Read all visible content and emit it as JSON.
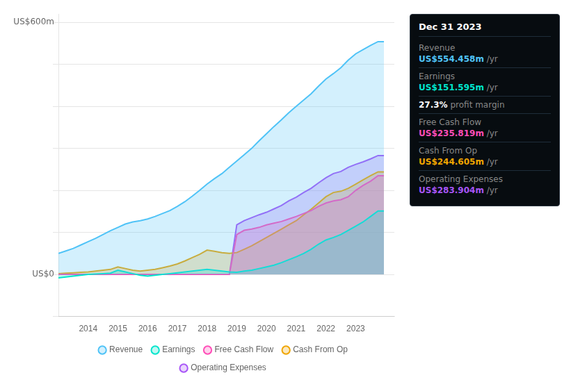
{
  "chart_data": {
    "type": "area",
    "x": [
      2013.0,
      2013.25,
      2013.5,
      2013.75,
      2014.0,
      2014.25,
      2014.5,
      2014.75,
      2015.0,
      2015.25,
      2015.5,
      2015.75,
      2016.0,
      2016.25,
      2016.5,
      2016.75,
      2017.0,
      2017.25,
      2017.5,
      2017.75,
      2018.0,
      2018.25,
      2018.5,
      2018.75,
      2019.0,
      2019.25,
      2019.5,
      2019.75,
      2020.0,
      2020.25,
      2020.5,
      2020.75,
      2021.0,
      2021.25,
      2021.5,
      2021.75,
      2022.0,
      2022.25,
      2022.5,
      2022.75,
      2023.0,
      2023.25,
      2023.5,
      2023.75,
      2023.95
    ],
    "series": [
      {
        "name": "Revenue",
        "color": "#4fc3f7",
        "values": [
          50,
          56,
          62,
          70,
          78,
          86,
          95,
          104,
          112,
          120,
          125,
          128,
          132,
          138,
          145,
          152,
          162,
          173,
          186,
          200,
          215,
          228,
          240,
          255,
          270,
          285,
          300,
          318,
          335,
          352,
          368,
          385,
          400,
          415,
          430,
          448,
          465,
          478,
          492,
          510,
          525,
          535,
          545,
          554,
          554
        ]
      },
      {
        "name": "Earnings",
        "color": "#00e5cc",
        "values": [
          -8,
          -6,
          -4,
          -2,
          0,
          1,
          2,
          3,
          10,
          6,
          2,
          -2,
          -4,
          -2,
          0,
          2,
          4,
          6,
          8,
          10,
          12,
          10,
          8,
          6,
          5,
          8,
          10,
          14,
          18,
          22,
          28,
          35,
          42,
          50,
          60,
          72,
          82,
          88,
          95,
          105,
          115,
          125,
          138,
          151,
          151
        ]
      },
      {
        "name": "Free Cash Flow",
        "color": "#ff4db8",
        "values": [
          0,
          0,
          0,
          0,
          0,
          0,
          0,
          0,
          0,
          0,
          0,
          0,
          0,
          0,
          0,
          0,
          0,
          0,
          0,
          0,
          0,
          0,
          0,
          0,
          95,
          105,
          108,
          112,
          118,
          122,
          126,
          132,
          138,
          145,
          152,
          162,
          170,
          175,
          178,
          185,
          200,
          212,
          222,
          235,
          235
        ]
      },
      {
        "name": "Cash From Op",
        "color": "#f0a500",
        "values": [
          2,
          3,
          4,
          5,
          6,
          8,
          10,
          12,
          18,
          14,
          10,
          8,
          10,
          12,
          16,
          20,
          25,
          32,
          40,
          48,
          58,
          55,
          52,
          50,
          52,
          60,
          68,
          78,
          88,
          98,
          108,
          118,
          128,
          142,
          155,
          170,
          185,
          195,
          198,
          205,
          215,
          225,
          235,
          244,
          244
        ]
      },
      {
        "name": "Operating Expenses",
        "color": "#a855f7",
        "values": [
          0,
          0,
          0,
          0,
          0,
          0,
          0,
          0,
          0,
          0,
          0,
          0,
          0,
          0,
          0,
          0,
          0,
          0,
          0,
          0,
          0,
          0,
          0,
          0,
          118,
          128,
          135,
          142,
          148,
          156,
          164,
          175,
          184,
          195,
          205,
          218,
          230,
          240,
          245,
          255,
          262,
          268,
          275,
          283,
          283
        ]
      }
    ],
    "xlim": [
      2013.0,
      2024.3
    ],
    "xticks": [
      2014,
      2015,
      2016,
      2017,
      2018,
      2019,
      2020,
      2021,
      2022,
      2023
    ],
    "ylim": [
      -100,
      620
    ],
    "yticks": [
      -100,
      0,
      100,
      200,
      300,
      400,
      500,
      600
    ],
    "grid": true,
    "tick_labels": "x",
    "legend": "bottom",
    "annotations": [
      {
        "text": "US$600m",
        "y": 600
      },
      {
        "text": "US$0",
        "y": 0
      }
    ],
    "info_box": {
      "title": "Dec 31 2023",
      "rows": [
        {
          "label": "Revenue",
          "value": "US$554.458m",
          "color": "#4fc3f7",
          "suffix": " /yr"
        },
        {
          "label": "Earnings",
          "value": "US$151.595m",
          "color": "#00e5cc",
          "suffix": " /yr"
        },
        {
          "value": "27.3%",
          "suffix": " profit margin"
        },
        {
          "label": "Free Cash Flow",
          "value": "US$235.819m",
          "color": "#ff4db8",
          "suffix": " /yr"
        },
        {
          "label": "Cash From Op",
          "value": "US$244.605m",
          "color": "#f0a500",
          "suffix": " /yr"
        },
        {
          "label": "Operating Expenses",
          "value": "US$283.904m",
          "color": "#a855f7",
          "suffix": " /yr"
        }
      ]
    }
  }
}
